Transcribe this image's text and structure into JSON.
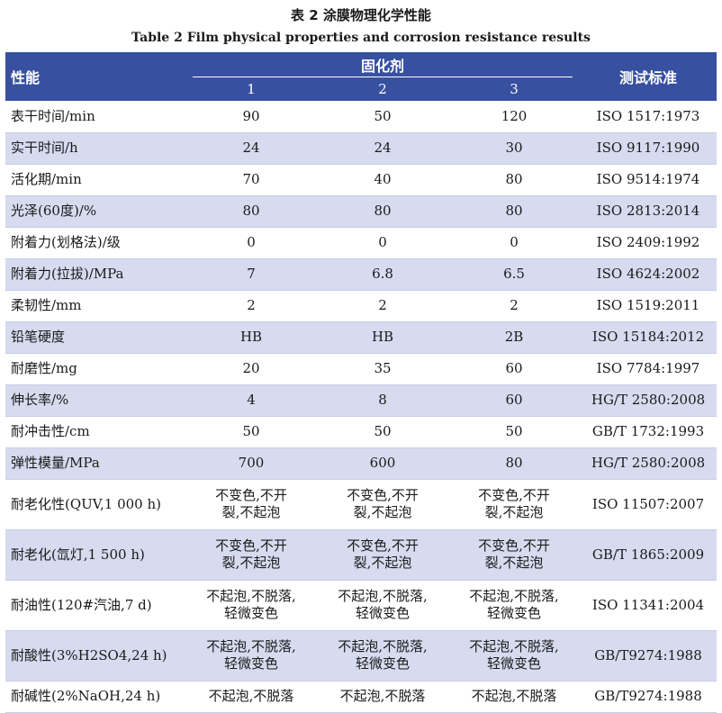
{
  "caption_zh": "表 2   涂膜物理化学性能",
  "caption_en": "Table 2   Film physical properties and corrosion resistance results",
  "header": {
    "property": "性能",
    "curing_agent": "固化剂",
    "standard": "测试标准",
    "agents": [
      "1",
      "2",
      "3"
    ]
  },
  "rows": [
    {
      "property": "表干时间/min",
      "v1": "90",
      "v2": "50",
      "v3": "120",
      "standard": "ISO 1517:1973"
    },
    {
      "property": "实干时间/h",
      "v1": "24",
      "v2": "24",
      "v3": "30",
      "standard": "ISO 9117:1990"
    },
    {
      "property": "活化期/min",
      "v1": "70",
      "v2": "40",
      "v3": "80",
      "standard": "ISO 9514:1974"
    },
    {
      "property": "光泽(60度)/%",
      "v1": "80",
      "v2": "80",
      "v3": "80",
      "standard": "ISO 2813:2014"
    },
    {
      "property": "附着力(划格法)/级",
      "v1": "0",
      "v2": "0",
      "v3": "0",
      "standard": "ISO 2409:1992"
    },
    {
      "property": "附着力(拉拔)/MPa",
      "v1": "7",
      "v2": "6.8",
      "v3": "6.5",
      "standard": "ISO 4624:2002"
    },
    {
      "property": "柔韧性/mm",
      "v1": "2",
      "v2": "2",
      "v3": "2",
      "standard": "ISO 1519:2011"
    },
    {
      "property": "铅笔硬度",
      "v1": "HB",
      "v2": "HB",
      "v3": "2B",
      "standard": "ISO 15184:2012"
    },
    {
      "property": "耐磨性/mg",
      "v1": "20",
      "v2": "35",
      "v3": "60",
      "standard": "ISO 7784:1997"
    },
    {
      "property": "伸长率/%",
      "v1": "4",
      "v2": "8",
      "v3": "60",
      "standard": "HG/T 2580:2008"
    },
    {
      "property": "耐冲击性/cm",
      "v1": "50",
      "v2": "50",
      "v3": "50",
      "standard": "GB/T 1732:1993"
    },
    {
      "property": "弹性模量/MPa",
      "v1": "700",
      "v2": "600",
      "v3": "80",
      "standard": "HG/T 2580:2008"
    },
    {
      "property": "耐老化性(QUV,1 000 h)",
      "v1": "不变色,不开\n裂,不起泡",
      "v2": "不变色,不开\n裂,不起泡",
      "v3": "不变色,不开\n裂,不起泡",
      "standard": "ISO 11507:2007"
    },
    {
      "property": "耐老化(氙灯,1 500 h)",
      "v1": "不变色,不开\n裂,不起泡",
      "v2": "不变色,不开\n裂,不起泡",
      "v3": "不变色,不开\n裂,不起泡",
      "standard": "GB/T 1865:2009"
    },
    {
      "property": "耐油性(120#汽油,7 d)",
      "v1": "不起泡,不脱落,\n轻微变色",
      "v2": "不起泡,不脱落,\n轻微变色",
      "v3": "不起泡,不脱落,\n轻微变色",
      "standard": "ISO 11341:2004"
    },
    {
      "property": "耐酸性(3%H2SO4,24 h)",
      "v1": "不起泡,不脱落,\n轻微变色",
      "v2": "不起泡,不脱落,\n轻微变色",
      "v3": "不起泡,不脱落,\n轻微变色",
      "standard": "GB/T9274:1988"
    },
    {
      "property": "耐碱性(2%NaOH,24 h)",
      "v1": "不起泡,不脱落",
      "v2": "不起泡,不脱落",
      "v3": "不起泡,不脱落",
      "standard": "GB/T9274:1988"
    }
  ],
  "colors": {
    "header_bg": "#3750a0",
    "stripe_bg": "#d6dbef"
  }
}
